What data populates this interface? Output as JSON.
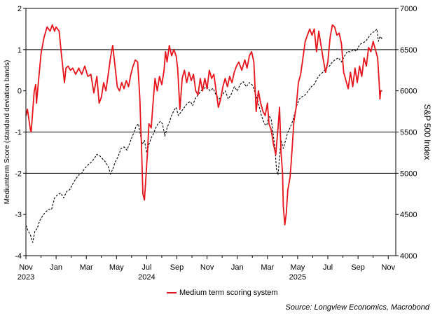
{
  "chart_data": {
    "type": "line",
    "left_axis": {
      "label": "Mediumterm Score (standard deviation bands)",
      "ylim": [
        -4,
        2
      ],
      "ticks": [
        "2",
        "1",
        "0",
        "-1",
        "-2",
        "-3",
        "-4"
      ],
      "tick_values": [
        2,
        1,
        0,
        -1,
        -2,
        -3,
        -4
      ]
    },
    "right_axis": {
      "label": "S&P 500 Index",
      "ylim": [
        4000,
        7000
      ],
      "ticks": [
        "7000",
        "6500",
        "6000",
        "5500",
        "5000",
        "4500",
        "4000"
      ],
      "tick_values": [
        7000,
        6500,
        6000,
        5500,
        5000,
        4500,
        4000
      ]
    },
    "x_axis": {
      "range": [
        0,
        24.5
      ],
      "tick_labels": [
        "Nov",
        "Jan",
        "Mar",
        "May",
        "Jul",
        "Sep",
        "Nov",
        "Jan",
        "Mar",
        "May",
        "Jul",
        "Sep",
        "Nov"
      ],
      "tick_months": [
        0,
        2,
        4,
        6,
        8,
        10,
        12,
        14,
        16,
        18,
        20,
        22,
        24
      ],
      "year_labels": [
        "2023",
        "2024",
        "2025"
      ],
      "year_months": [
        0,
        8,
        18
      ]
    },
    "hlines": [
      1,
      -1,
      -2
    ],
    "series": [
      {
        "name": "Medium term scoring system",
        "axis": "left",
        "color": "#e8141b",
        "style": "solid",
        "points": [
          [
            0.0,
            -0.6
          ],
          [
            0.1,
            -0.45
          ],
          [
            0.2,
            -0.7
          ],
          [
            0.3,
            -0.95
          ],
          [
            0.35,
            -1.0
          ],
          [
            0.45,
            -0.5
          ],
          [
            0.55,
            0.0
          ],
          [
            0.65,
            0.15
          ],
          [
            0.7,
            -0.3
          ],
          [
            0.85,
            0.3
          ],
          [
            1.0,
            0.9
          ],
          [
            1.2,
            1.3
          ],
          [
            1.4,
            1.55
          ],
          [
            1.6,
            1.45
          ],
          [
            1.75,
            1.6
          ],
          [
            1.9,
            1.45
          ],
          [
            2.0,
            1.55
          ],
          [
            2.2,
            1.45
          ],
          [
            2.35,
            0.9
          ],
          [
            2.45,
            0.55
          ],
          [
            2.55,
            0.2
          ],
          [
            2.65,
            0.55
          ],
          [
            2.8,
            0.6
          ],
          [
            2.95,
            0.5
          ],
          [
            3.1,
            0.55
          ],
          [
            3.3,
            0.4
          ],
          [
            3.5,
            0.55
          ],
          [
            3.7,
            0.4
          ],
          [
            3.9,
            0.6
          ],
          [
            4.1,
            0.35
          ],
          [
            4.3,
            0.4
          ],
          [
            4.5,
            -0.05
          ],
          [
            4.7,
            0.35
          ],
          [
            4.85,
            -0.3
          ],
          [
            5.0,
            -0.15
          ],
          [
            5.15,
            0.2
          ],
          [
            5.3,
            0.0
          ],
          [
            5.45,
            0.4
          ],
          [
            5.6,
            0.8
          ],
          [
            5.75,
            1.1
          ],
          [
            5.9,
            0.6
          ],
          [
            6.05,
            0.1
          ],
          [
            6.2,
            0.0
          ],
          [
            6.35,
            0.2
          ],
          [
            6.5,
            0.05
          ],
          [
            6.65,
            0.25
          ],
          [
            6.8,
            0.1
          ],
          [
            6.95,
            0.4
          ],
          [
            7.1,
            0.6
          ],
          [
            7.25,
            0.75
          ],
          [
            7.4,
            0.7
          ],
          [
            7.55,
            -0.2
          ],
          [
            7.6,
            -0.8
          ],
          [
            7.65,
            -1.3
          ],
          [
            7.75,
            -2.5
          ],
          [
            7.85,
            -2.65
          ],
          [
            7.95,
            -2.1
          ],
          [
            8.05,
            -1.5
          ],
          [
            8.15,
            -0.8
          ],
          [
            8.3,
            -0.9
          ],
          [
            8.4,
            -0.4
          ],
          [
            8.55,
            0.3
          ],
          [
            8.7,
            0.0
          ],
          [
            8.85,
            0.35
          ],
          [
            9.0,
            0.15
          ],
          [
            9.15,
            0.5
          ],
          [
            9.25,
            0.95
          ],
          [
            9.35,
            0.7
          ],
          [
            9.5,
            1.1
          ],
          [
            9.65,
            0.85
          ],
          [
            9.8,
            1.0
          ],
          [
            9.95,
            0.85
          ],
          [
            10.05,
            0.55
          ],
          [
            10.2,
            -0.45
          ],
          [
            10.35,
            0.3
          ],
          [
            10.5,
            0.5
          ],
          [
            10.65,
            0.2
          ],
          [
            10.8,
            0.45
          ],
          [
            10.95,
            0.25
          ],
          [
            11.1,
            0.4
          ],
          [
            11.25,
            0.0
          ],
          [
            11.4,
            -0.1
          ],
          [
            11.55,
            0.3
          ],
          [
            11.7,
            0.0
          ],
          [
            11.85,
            0.3
          ],
          [
            12.0,
            0.05
          ],
          [
            12.15,
            0.5
          ],
          [
            12.3,
            0.3
          ],
          [
            12.45,
            0.4
          ],
          [
            12.6,
            0.0
          ],
          [
            12.75,
            -0.4
          ],
          [
            12.9,
            -0.2
          ],
          [
            13.05,
            0.1
          ],
          [
            13.2,
            0.3
          ],
          [
            13.35,
            0.1
          ],
          [
            13.5,
            0.35
          ],
          [
            13.65,
            0.2
          ],
          [
            13.8,
            0.45
          ],
          [
            13.95,
            0.6
          ],
          [
            14.1,
            0.7
          ],
          [
            14.3,
            0.5
          ],
          [
            14.5,
            0.75
          ],
          [
            14.65,
            0.55
          ],
          [
            14.8,
            0.85
          ],
          [
            14.95,
            0.95
          ],
          [
            15.1,
            0.7
          ],
          [
            15.25,
            -0.5
          ],
          [
            15.4,
            0.0
          ],
          [
            15.55,
            -0.3
          ],
          [
            15.7,
            -0.5
          ],
          [
            15.85,
            -0.6
          ],
          [
            16.0,
            -0.3
          ],
          [
            16.1,
            -0.8
          ],
          [
            16.25,
            -0.95
          ],
          [
            16.4,
            -1.3
          ],
          [
            16.55,
            -1.55
          ],
          [
            16.7,
            -0.9
          ],
          [
            16.8,
            -0.4
          ],
          [
            16.9,
            -1.5
          ],
          [
            17.0,
            -2.0
          ],
          [
            17.05,
            -2.8
          ],
          [
            17.15,
            -3.25
          ],
          [
            17.25,
            -2.95
          ],
          [
            17.35,
            -2.4
          ],
          [
            17.5,
            -2.1
          ],
          [
            17.6,
            -1.6
          ],
          [
            17.75,
            -0.75
          ],
          [
            17.9,
            -0.4
          ],
          [
            18.05,
            0.2
          ],
          [
            18.2,
            0.4
          ],
          [
            18.35,
            0.8
          ],
          [
            18.5,
            1.2
          ],
          [
            18.65,
            1.35
          ],
          [
            18.8,
            1.5
          ],
          [
            18.95,
            1.35
          ],
          [
            19.1,
            1.5
          ],
          [
            19.25,
            0.95
          ],
          [
            19.4,
            1.45
          ],
          [
            19.55,
            1.1
          ],
          [
            19.7,
            0.75
          ],
          [
            19.85,
            0.45
          ],
          [
            20.0,
            0.7
          ],
          [
            20.15,
            1.3
          ],
          [
            20.3,
            1.6
          ],
          [
            20.45,
            1.55
          ],
          [
            20.6,
            1.35
          ],
          [
            20.75,
            1.4
          ],
          [
            20.9,
            1.15
          ],
          [
            21.05,
            0.45
          ],
          [
            21.2,
            0.25
          ],
          [
            21.35,
            0.05
          ],
          [
            21.5,
            0.45
          ],
          [
            21.65,
            0.1
          ],
          [
            21.8,
            0.55
          ],
          [
            21.95,
            0.2
          ],
          [
            22.1,
            0.6
          ],
          [
            22.25,
            0.35
          ],
          [
            22.4,
            0.8
          ],
          [
            22.55,
            0.6
          ],
          [
            22.7,
            1.05
          ],
          [
            22.85,
            0.95
          ],
          [
            23.0,
            1.2
          ],
          [
            23.15,
            1.0
          ],
          [
            23.3,
            0.8
          ],
          [
            23.4,
            0.2
          ],
          [
            23.45,
            -0.2
          ],
          [
            23.5,
            0.0
          ],
          [
            23.6,
            0.0
          ]
        ]
      },
      {
        "name": "",
        "axis": "right",
        "color": "#000000",
        "style": "dashed",
        "points": [
          [
            0.0,
            4370
          ],
          [
            0.15,
            4300
          ],
          [
            0.3,
            4250
          ],
          [
            0.45,
            4160
          ],
          [
            0.6,
            4300
          ],
          [
            0.75,
            4330
          ],
          [
            0.9,
            4420
          ],
          [
            1.1,
            4480
          ],
          [
            1.3,
            4530
          ],
          [
            1.5,
            4560
          ],
          [
            1.7,
            4560
          ],
          [
            1.9,
            4700
          ],
          [
            2.1,
            4740
          ],
          [
            2.3,
            4760
          ],
          [
            2.5,
            4700
          ],
          [
            2.7,
            4780
          ],
          [
            2.9,
            4800
          ],
          [
            3.1,
            4870
          ],
          [
            3.3,
            4930
          ],
          [
            3.5,
            4980
          ],
          [
            3.7,
            5000
          ],
          [
            3.9,
            5060
          ],
          [
            4.1,
            5100
          ],
          [
            4.3,
            5130
          ],
          [
            4.5,
            5170
          ],
          [
            4.7,
            5230
          ],
          [
            4.9,
            5210
          ],
          [
            5.1,
            5170
          ],
          [
            5.3,
            5130
          ],
          [
            5.45,
            5080
          ],
          [
            5.6,
            4990
          ],
          [
            5.75,
            5050
          ],
          [
            5.9,
            5130
          ],
          [
            6.1,
            5200
          ],
          [
            6.3,
            5300
          ],
          [
            6.5,
            5320
          ],
          [
            6.7,
            5280
          ],
          [
            6.9,
            5380
          ],
          [
            7.1,
            5470
          ],
          [
            7.3,
            5570
          ],
          [
            7.45,
            5600
          ],
          [
            7.6,
            5450
          ],
          [
            7.7,
            5350
          ],
          [
            7.85,
            5400
          ],
          [
            8.0,
            5250
          ],
          [
            8.15,
            5350
          ],
          [
            8.3,
            5430
          ],
          [
            8.45,
            5480
          ],
          [
            8.6,
            5550
          ],
          [
            8.75,
            5600
          ],
          [
            8.9,
            5630
          ],
          [
            9.05,
            5600
          ],
          [
            9.2,
            5450
          ],
          [
            9.35,
            5550
          ],
          [
            9.5,
            5620
          ],
          [
            9.65,
            5700
          ],
          [
            9.8,
            5760
          ],
          [
            9.95,
            5800
          ],
          [
            10.1,
            5700
          ],
          [
            10.3,
            5750
          ],
          [
            10.5,
            5800
          ],
          [
            10.7,
            5850
          ],
          [
            10.9,
            5870
          ],
          [
            11.05,
            5820
          ],
          [
            11.2,
            5900
          ],
          [
            11.4,
            5950
          ],
          [
            11.6,
            6000
          ],
          [
            11.8,
            6030
          ],
          [
            12.0,
            6050
          ],
          [
            12.2,
            6000
          ],
          [
            12.4,
            6030
          ],
          [
            12.6,
            5950
          ],
          [
            12.8,
            5900
          ],
          [
            13.0,
            5950
          ],
          [
            13.2,
            6000
          ],
          [
            13.4,
            5900
          ],
          [
            13.6,
            5960
          ],
          [
            13.8,
            6050
          ],
          [
            14.0,
            6000
          ],
          [
            14.2,
            6080
          ],
          [
            14.4,
            6110
          ],
          [
            14.6,
            6050
          ],
          [
            14.8,
            6100
          ],
          [
            15.0,
            6070
          ],
          [
            15.2,
            5970
          ],
          [
            15.4,
            5850
          ],
          [
            15.6,
            5700
          ],
          [
            15.8,
            5600
          ],
          [
            15.95,
            5580
          ],
          [
            16.1,
            5700
          ],
          [
            16.25,
            5650
          ],
          [
            16.4,
            5450
          ],
          [
            16.5,
            5300
          ],
          [
            16.6,
            5050
          ],
          [
            16.7,
            4980
          ],
          [
            16.8,
            5200
          ],
          [
            16.9,
            5400
          ],
          [
            17.05,
            5300
          ],
          [
            17.2,
            5400
          ],
          [
            17.35,
            5500
          ],
          [
            17.5,
            5550
          ],
          [
            17.7,
            5650
          ],
          [
            17.9,
            5800
          ],
          [
            18.1,
            5900
          ],
          [
            18.3,
            5930
          ],
          [
            18.5,
            5950
          ],
          [
            18.7,
            6000
          ],
          [
            18.9,
            6050
          ],
          [
            19.1,
            6080
          ],
          [
            19.3,
            6150
          ],
          [
            19.5,
            6200
          ],
          [
            19.7,
            6230
          ],
          [
            19.9,
            6280
          ],
          [
            20.1,
            6300
          ],
          [
            20.3,
            6350
          ],
          [
            20.5,
            6380
          ],
          [
            20.7,
            6400
          ],
          [
            20.9,
            6350
          ],
          [
            21.1,
            6420
          ],
          [
            21.3,
            6480
          ],
          [
            21.5,
            6470
          ],
          [
            21.7,
            6500
          ],
          [
            21.9,
            6480
          ],
          [
            22.1,
            6560
          ],
          [
            22.3,
            6580
          ],
          [
            22.5,
            6600
          ],
          [
            22.7,
            6650
          ],
          [
            22.9,
            6700
          ],
          [
            23.1,
            6720
          ],
          [
            23.25,
            6750
          ],
          [
            23.35,
            6600
          ],
          [
            23.45,
            6660
          ],
          [
            23.6,
            6630
          ]
        ]
      }
    ],
    "legend": {
      "label": "Medium term scoring system",
      "placement": "bottom"
    },
    "source": "Source: Longview Economics, Macrobond",
    "grid": false
  }
}
